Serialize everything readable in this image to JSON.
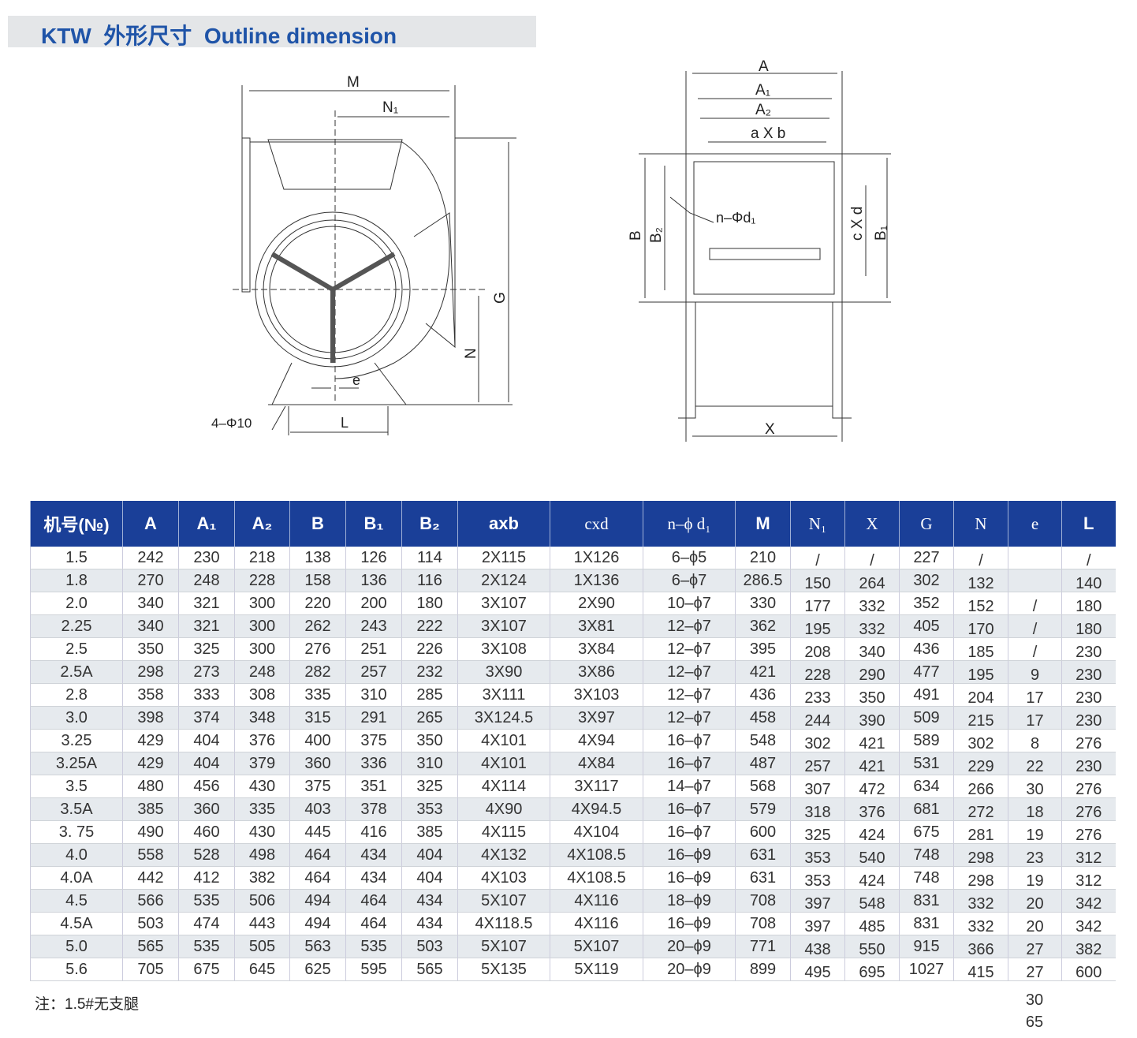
{
  "title": "KTW  外形尺寸  Outline dimension",
  "drawing": {
    "left_labels": {
      "M": "M",
      "N1": "N₁",
      "G": "G",
      "N": "N",
      "e": "e",
      "L": "L",
      "holes": "4–Φ10"
    },
    "right_labels": {
      "A": "A",
      "A1": "A₁",
      "A2": "A₂",
      "axb": "a X b",
      "B": "B",
      "B2": "B₂",
      "cxd": "c X d",
      "B1": "B₁",
      "nd": "n–Φd₁",
      "X": "X"
    }
  },
  "table": {
    "headers": [
      "机号(№)",
      "A",
      "A₁",
      "A₂",
      "B",
      "B₁",
      "B₂",
      "axb",
      "cxd",
      "n–ϕ d₁",
      "M",
      "N₁",
      "X",
      "G",
      "N",
      "e",
      "L"
    ],
    "rows": [
      [
        "1.5",
        "242",
        "230",
        "218",
        "138",
        "126",
        "114",
        "2X115",
        "1X126",
        "6–ϕ5",
        "210",
        "/",
        "/",
        "227",
        "/",
        "",
        "/"
      ],
      [
        "1.8",
        "270",
        "248",
        "228",
        "158",
        "136",
        "116",
        "2X124",
        "1X136",
        "6–ϕ7",
        "286.5",
        "150",
        "264",
        "302",
        "132",
        "",
        "140"
      ],
      [
        "2.0",
        "340",
        "321",
        "300",
        "220",
        "200",
        "180",
        "3X107",
        "2X90",
        "10–ϕ7",
        "330",
        "177",
        "332",
        "352",
        "152",
        "/",
        "180"
      ],
      [
        "2.25",
        "340",
        "321",
        "300",
        "262",
        "243",
        "222",
        "3X107",
        "3X81",
        "12–ϕ7",
        "362",
        "195",
        "332",
        "405",
        "170",
        "/",
        "180"
      ],
      [
        "2.5",
        "350",
        "325",
        "300",
        "276",
        "251",
        "226",
        "3X108",
        "3X84",
        "12–ϕ7",
        "395",
        "208",
        "340",
        "436",
        "185",
        "/",
        "230"
      ],
      [
        "2.5A",
        "298",
        "273",
        "248",
        "282",
        "257",
        "232",
        "3X90",
        "3X86",
        "12–ϕ7",
        "421",
        "228",
        "290",
        "477",
        "195",
        "9",
        "230"
      ],
      [
        "2.8",
        "358",
        "333",
        "308",
        "335",
        "310",
        "285",
        "3X111",
        "3X103",
        "12–ϕ7",
        "436",
        "233",
        "350",
        "491",
        "204",
        "17",
        "230"
      ],
      [
        "3.0",
        "398",
        "374",
        "348",
        "315",
        "291",
        "265",
        "3X124.5",
        "3X97",
        "12–ϕ7",
        "458",
        "244",
        "390",
        "509",
        "215",
        "17",
        "230"
      ],
      [
        "3.25",
        "429",
        "404",
        "376",
        "400",
        "375",
        "350",
        "4X101",
        "4X94",
        "16–ϕ7",
        "548",
        "302",
        "421",
        "589",
        "302",
        "8",
        "276"
      ],
      [
        "3.25A",
        "429",
        "404",
        "379",
        "360",
        "336",
        "310",
        "4X101",
        "4X84",
        "16–ϕ7",
        "487",
        "257",
        "421",
        "531",
        "229",
        "22",
        "230"
      ],
      [
        "3.5",
        "480",
        "456",
        "430",
        "375",
        "351",
        "325",
        "4X114",
        "3X117",
        "14–ϕ7",
        "568",
        "307",
        "472",
        "634",
        "266",
        "30",
        "276"
      ],
      [
        "3.5A",
        "385",
        "360",
        "335",
        "403",
        "378",
        "353",
        "4X90",
        "4X94.5",
        "16–ϕ7",
        "579",
        "318",
        "376",
        "681",
        "272",
        "18",
        "276"
      ],
      [
        "3. 75",
        "490",
        "460",
        "430",
        "445",
        "416",
        "385",
        "4X115",
        "4X104",
        "16–ϕ7",
        "600",
        "325",
        "424",
        "675",
        "281",
        "19",
        "276"
      ],
      [
        "4.0",
        "558",
        "528",
        "498",
        "464",
        "434",
        "404",
        "4X132",
        "4X108.5",
        "16–ϕ9",
        "631",
        "353",
        "540",
        "748",
        "298",
        "23",
        "312"
      ],
      [
        "4.0A",
        "442",
        "412",
        "382",
        "464",
        "434",
        "404",
        "4X103",
        "4X108.5",
        "16–ϕ9",
        "631",
        "353",
        "424",
        "748",
        "298",
        "19",
        "312"
      ],
      [
        "4.5",
        "566",
        "535",
        "506",
        "494",
        "464",
        "434",
        "5X107",
        "4X116",
        "18–ϕ9",
        "708",
        "397",
        "548",
        "831",
        "332",
        "20",
        "342"
      ],
      [
        "4.5A",
        "503",
        "474",
        "443",
        "494",
        "464",
        "434",
        "4X118.5",
        "4X116",
        "16–ϕ9",
        "708",
        "397",
        "485",
        "831",
        "332",
        "20",
        "342"
      ],
      [
        "5.0",
        "565",
        "535",
        "505",
        "563",
        "535",
        "503",
        "5X107",
        "5X107",
        "20–ϕ9",
        "771",
        "438",
        "550",
        "915",
        "366",
        "27",
        "382"
      ],
      [
        "5.6",
        "705",
        "675",
        "645",
        "625",
        "595",
        "565",
        "5X135",
        "5X119",
        "20–ϕ9",
        "899",
        "495",
        "695",
        "1027",
        "415",
        "27",
        "600"
      ]
    ],
    "e_overflow": [
      "30",
      "65"
    ]
  },
  "note": "注：1.5#无支腿",
  "colors": {
    "header_bg": "#1a3f98",
    "title_text": "#1f54a8",
    "alt_row": "#e6eaee"
  }
}
